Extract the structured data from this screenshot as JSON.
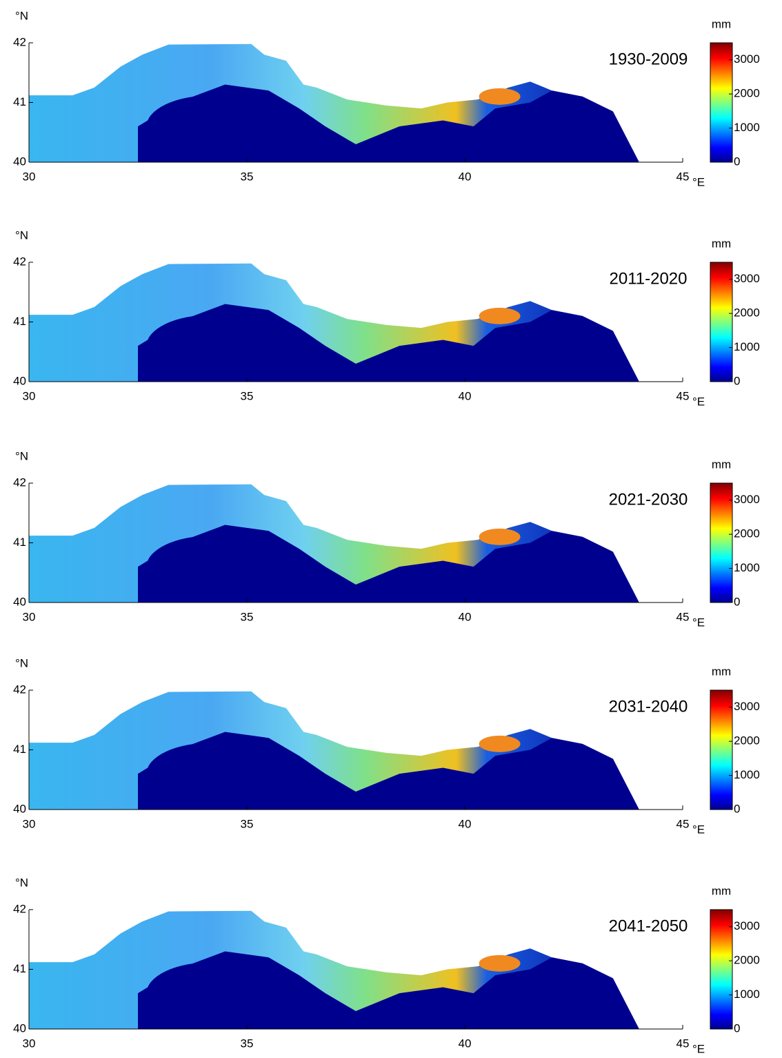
{
  "lat_unit": "°N",
  "lon_unit": "°E",
  "colorbar_unit": "mm",
  "xlim": [
    30,
    45
  ],
  "ylim": [
    40,
    42
  ],
  "xticks": [
    30,
    35,
    40,
    45
  ],
  "yticks": [
    40,
    41,
    42
  ],
  "colorbar_lim": [
    0,
    3500
  ],
  "colorbar_ticks": [
    0,
    1000,
    2000,
    3000
  ],
  "panels": [
    {
      "period": "1930-2009"
    },
    {
      "period": "2011-2020"
    },
    {
      "period": "2021-2030"
    },
    {
      "period": "2031-2040"
    },
    {
      "period": "2041-2050"
    }
  ]
}
